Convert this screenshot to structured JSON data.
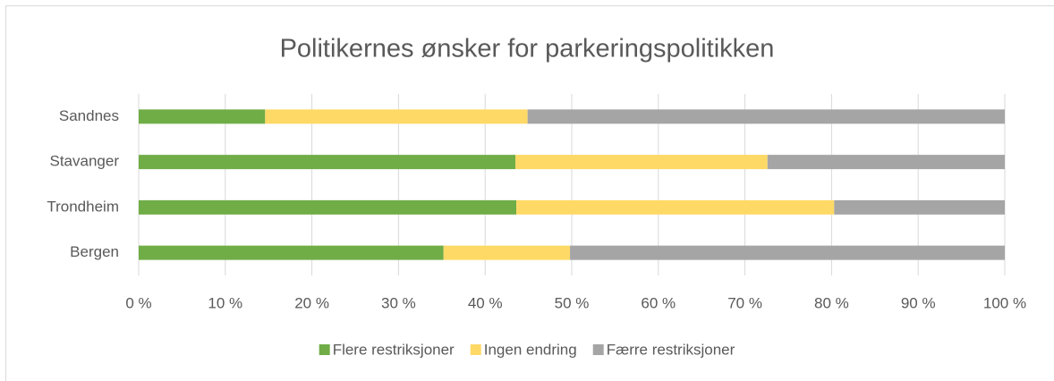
{
  "chart_data": {
    "type": "stacked-bar-horizontal",
    "title": "Politikernes ønsker for parkeringspolitikken",
    "categories": [
      "Sandnes",
      "Stavanger",
      "Trondheim",
      "Bergen"
    ],
    "series": [
      {
        "name": "Flere restriksjoner",
        "color": "#70ad47",
        "values": [
          14.6,
          43.5,
          43.6,
          35.2
        ]
      },
      {
        "name": "Ingen endring",
        "color": "#ffd966",
        "values": [
          30.3,
          29.1,
          36.7,
          14.6
        ]
      },
      {
        "name": "Færre restriksjoner",
        "color": "#a5a5a5",
        "values": [
          55.1,
          27.4,
          19.7,
          50.2
        ]
      }
    ],
    "xlim": [
      0,
      100
    ],
    "xticks": [
      {
        "value": 0,
        "label": "0 %"
      },
      {
        "value": 10,
        "label": "10 %"
      },
      {
        "value": 20,
        "label": "20 %"
      },
      {
        "value": 30,
        "label": "30 %"
      },
      {
        "value": 40,
        "label": "40 %"
      },
      {
        "value": 50,
        "label": "50 %"
      },
      {
        "value": 60,
        "label": "60 %"
      },
      {
        "value": 70,
        "label": "70 %"
      },
      {
        "value": 80,
        "label": "80 %"
      },
      {
        "value": 90,
        "label": "90 %"
      },
      {
        "value": 100,
        "label": "100 %"
      }
    ],
    "grid": true,
    "legend": "bottom"
  }
}
